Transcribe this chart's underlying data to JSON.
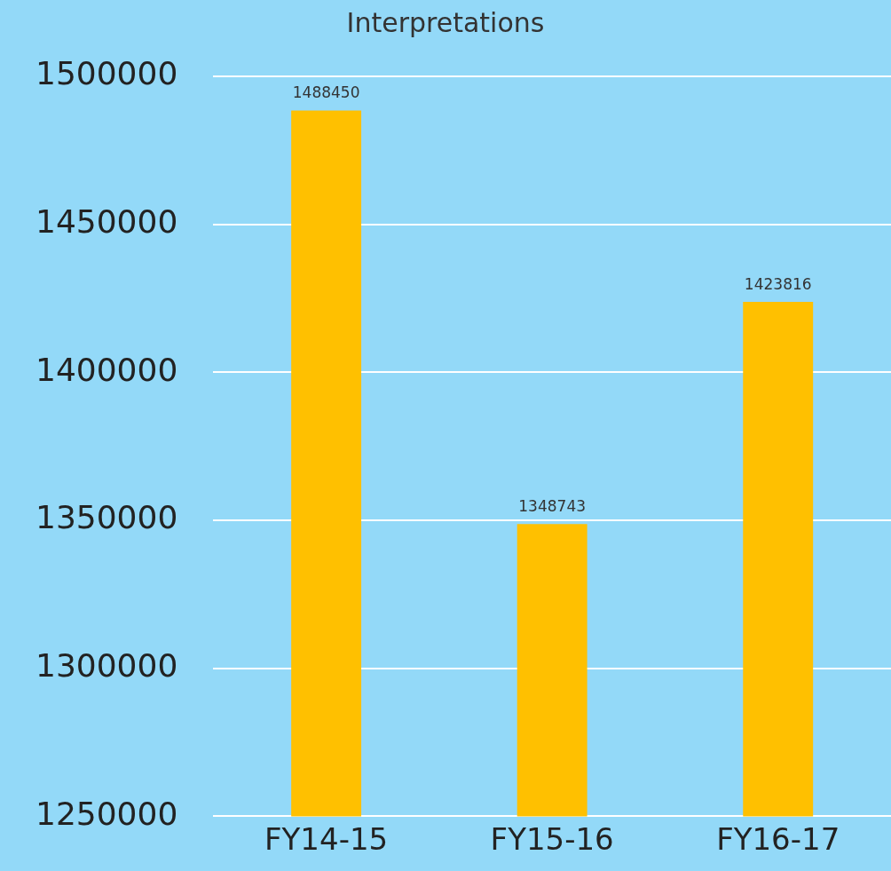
{
  "chart_data": {
    "type": "bar",
    "title": "Interpretations",
    "categories": [
      "FY14-15",
      "FY15-16",
      "FY16-17"
    ],
    "values": [
      1488450,
      1348743,
      1423816
    ],
    "color": "#ffc000",
    "ylim": [
      1250000,
      1500000
    ],
    "yticks": [
      1250000,
      1300000,
      1350000,
      1400000,
      1450000,
      1500000
    ],
    "grid": "y",
    "data_labels": true,
    "legend": false
  }
}
